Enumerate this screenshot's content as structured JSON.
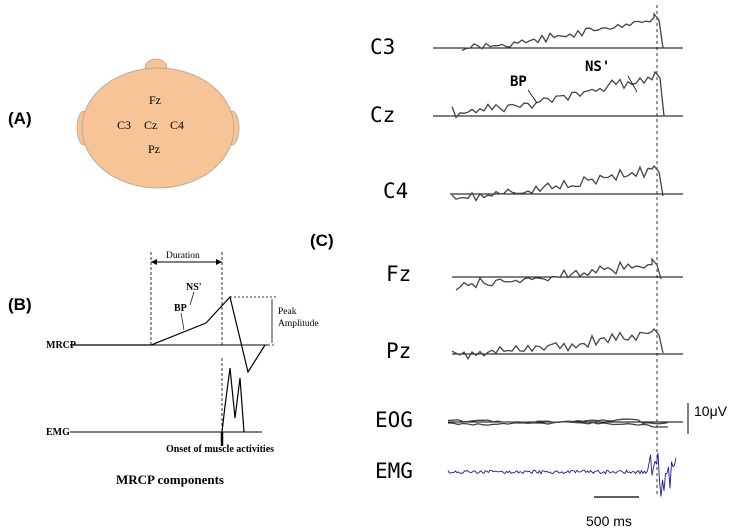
{
  "panel_labels": {
    "a": "(A)",
    "b": "(B)",
    "c": "(C)"
  },
  "head_electrodes": [
    "Fz",
    "C3",
    "Cz",
    "C4",
    "Pz"
  ],
  "schematic": {
    "duration_label": "Duration",
    "ns_label": "NS'",
    "bp_label": "BP",
    "peak_amplitude_line1": "Peak",
    "peak_amplitude_line2": "Amplitude",
    "mrcp_row_label": "MRCP",
    "emg_row_label": "EMG",
    "onset_label": "Onset of muscle activities",
    "caption": "MRCP components"
  },
  "channels": [
    "C3",
    "Cz",
    "C4",
    "Fz",
    "Pz",
    "EOG",
    "EMG"
  ],
  "annotations": {
    "bp": "BP",
    "ns": "NS'"
  },
  "scale": {
    "voltage": "10μV",
    "time": "500 ms"
  },
  "colors": {
    "head": "#f6c497",
    "head_stroke": "#b0a090",
    "emg_trace": "#1c1c9c",
    "trace": "#444444"
  }
}
